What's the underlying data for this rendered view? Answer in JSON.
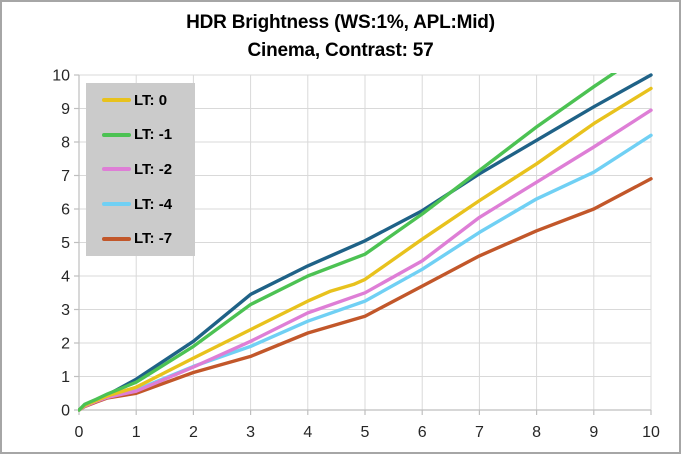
{
  "frame": {
    "border_color": "#A6A6A6",
    "background": "#FFFFFF"
  },
  "chart_data": {
    "type": "line",
    "title": "HDR Brightness (WS:1%, APL:Mid)",
    "subtitle": "Cinema, Contrast: 57",
    "xlabel": "",
    "ylabel": "",
    "xlim": [
      0,
      10
    ],
    "ylim": [
      0,
      10
    ],
    "x_ticks": [
      "0",
      "1",
      "2",
      "3",
      "4",
      "5",
      "6",
      "7",
      "8",
      "9",
      "10"
    ],
    "y_ticks": [
      "0",
      "1",
      "2",
      "3",
      "4",
      "5",
      "6",
      "7",
      "8",
      "9",
      "10"
    ],
    "grid": true,
    "colors": {
      "grid": "#D9D9D9",
      "axis": "#BFBFBF",
      "tick_text": "#262626",
      "title_text": "#000000"
    },
    "legend": {
      "position": "top-left",
      "background": "#CBCBCB",
      "text_color": "#000000"
    },
    "series": [
      {
        "label": "LT: 0",
        "color": "#E8C21D",
        "z": 5,
        "points": [
          [
            0,
            0
          ],
          [
            0.1,
            0.14
          ],
          [
            0.3,
            0.28
          ],
          [
            0.5,
            0.42
          ],
          [
            1,
            0.68
          ],
          [
            2,
            1.55
          ],
          [
            3,
            2.4
          ],
          [
            4,
            3.25
          ],
          [
            4.4,
            3.55
          ],
          [
            4.8,
            3.75
          ],
          [
            5,
            3.9
          ],
          [
            6,
            5.1
          ],
          [
            7,
            6.25
          ],
          [
            8,
            7.35
          ],
          [
            9,
            8.55
          ],
          [
            10,
            9.6
          ]
        ]
      },
      {
        "label": "LT: -1",
        "color": "#4CC253",
        "z": 6,
        "points": [
          [
            0,
            0
          ],
          [
            0.1,
            0.17
          ],
          [
            0.3,
            0.32
          ],
          [
            0.5,
            0.48
          ],
          [
            1,
            0.83
          ],
          [
            2,
            1.9
          ],
          [
            3,
            3.15
          ],
          [
            4,
            4.0
          ],
          [
            5,
            4.65
          ],
          [
            6,
            5.85
          ],
          [
            7,
            7.15
          ],
          [
            8,
            8.45
          ],
          [
            9,
            9.65
          ],
          [
            10,
            10.8
          ]
        ]
      },
      {
        "label": "LT: -2",
        "color": "#DE7ED6",
        "z": 4,
        "points": [
          [
            0,
            0
          ],
          [
            0.1,
            0.12
          ],
          [
            0.3,
            0.26
          ],
          [
            0.5,
            0.38
          ],
          [
            1,
            0.56
          ],
          [
            2,
            1.28
          ],
          [
            3,
            2.05
          ],
          [
            4,
            2.9
          ],
          [
            5,
            3.5
          ],
          [
            6,
            4.45
          ],
          [
            7,
            5.75
          ],
          [
            8,
            6.8
          ],
          [
            9,
            7.85
          ],
          [
            10,
            8.95
          ]
        ]
      },
      {
        "label": "LT: -4",
        "color": "#70D0F4",
        "z": 3,
        "points": [
          [
            0,
            0
          ],
          [
            0.1,
            0.12
          ],
          [
            0.3,
            0.27
          ],
          [
            0.5,
            0.4
          ],
          [
            1,
            0.6
          ],
          [
            2,
            1.3
          ],
          [
            3,
            1.9
          ],
          [
            4,
            2.65
          ],
          [
            5,
            3.25
          ],
          [
            6,
            4.2
          ],
          [
            7,
            5.3
          ],
          [
            8,
            6.3
          ],
          [
            9,
            7.1
          ],
          [
            10,
            8.2
          ]
        ]
      },
      {
        "label": "LT: -7",
        "color": "#C2572A",
        "z": 2,
        "points": [
          [
            0,
            0
          ],
          [
            0.1,
            0.1
          ],
          [
            0.3,
            0.24
          ],
          [
            0.5,
            0.36
          ],
          [
            1,
            0.5
          ],
          [
            2,
            1.12
          ],
          [
            3,
            1.6
          ],
          [
            4,
            2.3
          ],
          [
            5,
            2.8
          ],
          [
            6,
            3.7
          ],
          [
            7,
            4.6
          ],
          [
            8,
            5.35
          ],
          [
            9,
            6.0
          ],
          [
            10,
            6.9
          ]
        ]
      },
      {
        "label": null,
        "color": "#1F6287",
        "z": 1,
        "points": [
          [
            0,
            0
          ],
          [
            0.1,
            0.15
          ],
          [
            0.3,
            0.3
          ],
          [
            0.5,
            0.45
          ],
          [
            1,
            0.92
          ],
          [
            2,
            2.05
          ],
          [
            3,
            3.45
          ],
          [
            4,
            4.3
          ],
          [
            5,
            5.05
          ],
          [
            6,
            5.95
          ],
          [
            7,
            7.05
          ],
          [
            8,
            8.05
          ],
          [
            9,
            9.05
          ],
          [
            10,
            10
          ]
        ]
      }
    ]
  }
}
